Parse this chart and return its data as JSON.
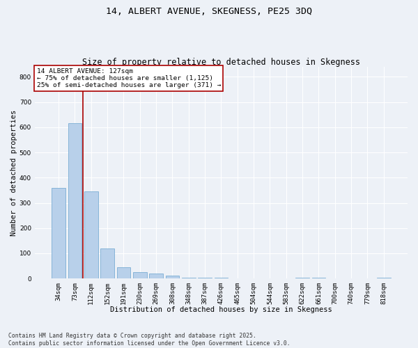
{
  "title": "14, ALBERT AVENUE, SKEGNESS, PE25 3DQ",
  "subtitle": "Size of property relative to detached houses in Skegness",
  "xlabel": "Distribution of detached houses by size in Skegness",
  "ylabel": "Number of detached properties",
  "categories": [
    "34sqm",
    "73sqm",
    "112sqm",
    "152sqm",
    "191sqm",
    "230sqm",
    "269sqm",
    "308sqm",
    "348sqm",
    "387sqm",
    "426sqm",
    "465sqm",
    "504sqm",
    "544sqm",
    "583sqm",
    "622sqm",
    "661sqm",
    "700sqm",
    "740sqm",
    "779sqm",
    "818sqm"
  ],
  "values": [
    360,
    615,
    345,
    120,
    45,
    25,
    20,
    10,
    2,
    2,
    2,
    0,
    0,
    0,
    0,
    2,
    2,
    0,
    0,
    0,
    2
  ],
  "bar_color": "#b8d0ea",
  "bar_edge_color": "#7aadd4",
  "vline_x_index": 1.5,
  "vline_color": "#aa0000",
  "annotation_text": "14 ALBERT AVENUE: 127sqm\n← 75% of detached houses are smaller (1,125)\n25% of semi-detached houses are larger (371) →",
  "annotation_box_facecolor": "#ffffff",
  "annotation_box_edgecolor": "#aa0000",
  "ylim": [
    0,
    840
  ],
  "yticks": [
    0,
    100,
    200,
    300,
    400,
    500,
    600,
    700,
    800
  ],
  "background_color": "#edf1f7",
  "grid_color": "#ffffff",
  "footer_line1": "Contains HM Land Registry data © Crown copyright and database right 2025.",
  "footer_line2": "Contains public sector information licensed under the Open Government Licence v3.0.",
  "title_fontsize": 9.5,
  "subtitle_fontsize": 8.5,
  "axis_label_fontsize": 7.5,
  "tick_fontsize": 6.5,
  "annotation_fontsize": 6.8,
  "footer_fontsize": 5.8
}
